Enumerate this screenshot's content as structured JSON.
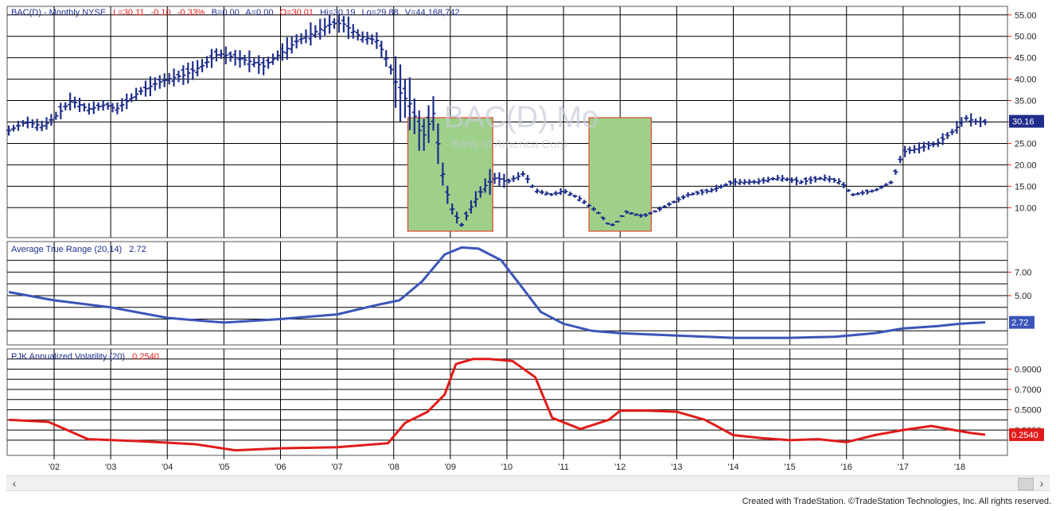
{
  "header": {
    "symbol": "BAC(D) - Monthly  NYSE",
    "last": "L=30.11",
    "change": "-0.10",
    "pct": "-0.33%",
    "bid": "B=0.00",
    "ask": "A=0.00",
    "open": "O=30.01",
    "high": "Hi=30.19",
    "low": "Lo=29.88",
    "volume": "V=44,168,742"
  },
  "watermark": {
    "symbol": "BAC(D),Mo",
    "company": "Bank of America Corp"
  },
  "colors": {
    "price": "#1f2e8a",
    "atr": "#3b55b8",
    "vol": "#e01b1b",
    "box_fill": "#9ed08a",
    "box_border": "#e0442b",
    "grid": "#000000"
  },
  "chart_data": [
    {
      "type": "ohlc",
      "title": "BAC(D) - Monthly",
      "ylim": [
        3,
        57
      ],
      "y_ticks": [
        "55.00",
        "50.00",
        "45.00",
        "40.00",
        "35.00",
        "30.00",
        "25.00",
        "20.00",
        "15.00",
        "10.00"
      ],
      "current_label": "30.16",
      "shaded_periods": [
        [
          2008.25,
          2009.75
        ],
        [
          2011.45,
          2012.55
        ]
      ],
      "x_ticks": [
        "'02",
        "'03",
        "'04",
        "'05",
        "'06",
        "'07",
        "'08",
        "'09",
        "'10",
        "'11",
        "'12",
        "'13",
        "'14",
        "'15",
        "'16",
        "'17",
        "'18"
      ],
      "series": [
        {
          "points": [
            [
              2001.2,
              28
            ],
            [
              2001.5,
              30
            ],
            [
              2001.8,
              29
            ],
            [
              2002.0,
              31
            ],
            [
              2002.3,
              35
            ],
            [
              2002.6,
              33
            ],
            [
              2002.9,
              34
            ],
            [
              2003.1,
              33
            ],
            [
              2003.5,
              37
            ],
            [
              2003.8,
              39
            ],
            [
              2004.0,
              40
            ],
            [
              2004.3,
              41
            ],
            [
              2004.6,
              43
            ],
            [
              2004.9,
              46
            ],
            [
              2005.2,
              45
            ],
            [
              2005.5,
              44
            ],
            [
              2005.7,
              43
            ],
            [
              2006.0,
              46
            ],
            [
              2006.3,
              49
            ],
            [
              2006.6,
              51
            ],
            [
              2006.9,
              53
            ],
            [
              2007.1,
              53
            ],
            [
              2007.4,
              50
            ],
            [
              2007.7,
              49
            ],
            [
              2007.9,
              44
            ],
            [
              2008.1,
              37
            ],
            [
              2008.3,
              34
            ],
            [
              2008.5,
              26
            ],
            [
              2008.7,
              32
            ],
            [
              2008.9,
              15
            ],
            [
              2009.05,
              9
            ],
            [
              2009.2,
              6
            ],
            [
              2009.4,
              11
            ],
            [
              2009.6,
              15
            ],
            [
              2009.8,
              17
            ],
            [
              2010.0,
              16
            ],
            [
              2010.3,
              18
            ],
            [
              2010.5,
              14
            ],
            [
              2010.8,
              13
            ],
            [
              2011.0,
              14
            ],
            [
              2011.3,
              12
            ],
            [
              2011.6,
              9
            ],
            [
              2011.8,
              6
            ],
            [
              2011.9,
              6
            ],
            [
              2012.1,
              9
            ],
            [
              2012.4,
              8
            ],
            [
              2012.6,
              9
            ],
            [
              2012.9,
              11
            ],
            [
              2013.2,
              13
            ],
            [
              2013.6,
              14
            ],
            [
              2014.0,
              16
            ],
            [
              2014.4,
              16
            ],
            [
              2014.8,
              17
            ],
            [
              2015.2,
              16
            ],
            [
              2015.6,
              17
            ],
            [
              2015.9,
              16
            ],
            [
              2016.1,
              13
            ],
            [
              2016.5,
              14
            ],
            [
              2016.8,
              16
            ],
            [
              2017.0,
              23
            ],
            [
              2017.3,
              24
            ],
            [
              2017.6,
              25
            ],
            [
              2017.9,
              28
            ],
            [
              2018.1,
              31
            ],
            [
              2018.3,
              30
            ],
            [
              2018.45,
              30
            ]
          ]
        }
      ]
    },
    {
      "type": "line",
      "title": "Average True Range (20,14)",
      "last_value": "2.72",
      "ylim": [
        0.8,
        9.6
      ],
      "y_ticks": [
        "7.00",
        "5.00"
      ],
      "current_label": "2.72",
      "series": [
        {
          "name": "Average True Range (20,14)",
          "points": [
            [
              2001.2,
              5.3
            ],
            [
              2002.0,
              4.6
            ],
            [
              2003.0,
              4.0
            ],
            [
              2004.0,
              3.1
            ],
            [
              2005.0,
              2.7
            ],
            [
              2006.0,
              3.0
            ],
            [
              2007.0,
              3.4
            ],
            [
              2007.7,
              4.2
            ],
            [
              2008.1,
              4.6
            ],
            [
              2008.5,
              6.2
            ],
            [
              2008.9,
              8.5
            ],
            [
              2009.2,
              9.1
            ],
            [
              2009.5,
              9.0
            ],
            [
              2009.9,
              8.0
            ],
            [
              2010.3,
              5.5
            ],
            [
              2010.6,
              3.6
            ],
            [
              2011.0,
              2.6
            ],
            [
              2011.5,
              2.0
            ],
            [
              2012.0,
              1.8
            ],
            [
              2013.0,
              1.6
            ],
            [
              2014.0,
              1.4
            ],
            [
              2015.0,
              1.4
            ],
            [
              2015.8,
              1.5
            ],
            [
              2016.5,
              1.8
            ],
            [
              2017.0,
              2.2
            ],
            [
              2017.6,
              2.4
            ],
            [
              2018.0,
              2.6
            ],
            [
              2018.45,
              2.72
            ]
          ]
        }
      ]
    },
    {
      "type": "line",
      "title": "PJK Annualized Volatility (20)",
      "last_value": "0.2540",
      "ylim": [
        0.05,
        1.1
      ],
      "y_ticks": [
        "0.9000",
        "0.7000",
        "0.5000",
        "0.3000"
      ],
      "current_label": "0.2540",
      "series": [
        {
          "name": "PJK Annualized Volatility (20)",
          "points": [
            [
              2001.2,
              0.4
            ],
            [
              2001.9,
              0.38
            ],
            [
              2002.6,
              0.21
            ],
            [
              2003.5,
              0.19
            ],
            [
              2004.5,
              0.16
            ],
            [
              2005.2,
              0.1
            ],
            [
              2006.0,
              0.12
            ],
            [
              2007.0,
              0.13
            ],
            [
              2007.9,
              0.17
            ],
            [
              2008.2,
              0.37
            ],
            [
              2008.6,
              0.48
            ],
            [
              2008.9,
              0.65
            ],
            [
              2009.1,
              0.95
            ],
            [
              2009.4,
              1.0
            ],
            [
              2009.7,
              1.0
            ],
            [
              2010.1,
              0.98
            ],
            [
              2010.5,
              0.82
            ],
            [
              2010.8,
              0.42
            ],
            [
              2011.3,
              0.31
            ],
            [
              2011.8,
              0.4
            ],
            [
              2012.0,
              0.49
            ],
            [
              2012.5,
              0.49
            ],
            [
              2013.0,
              0.48
            ],
            [
              2013.5,
              0.4
            ],
            [
              2014.0,
              0.25
            ],
            [
              2014.5,
              0.22
            ],
            [
              2015.0,
              0.2
            ],
            [
              2015.5,
              0.21
            ],
            [
              2016.0,
              0.18
            ],
            [
              2016.5,
              0.25
            ],
            [
              2017.0,
              0.3
            ],
            [
              2017.5,
              0.34
            ],
            [
              2017.9,
              0.3
            ],
            [
              2018.2,
              0.27
            ],
            [
              2018.45,
              0.254
            ]
          ]
        }
      ]
    }
  ],
  "footer": {
    "credit": "Created with TradeStation. ©TradeStation Technologies, Inc. All rights reserved."
  }
}
